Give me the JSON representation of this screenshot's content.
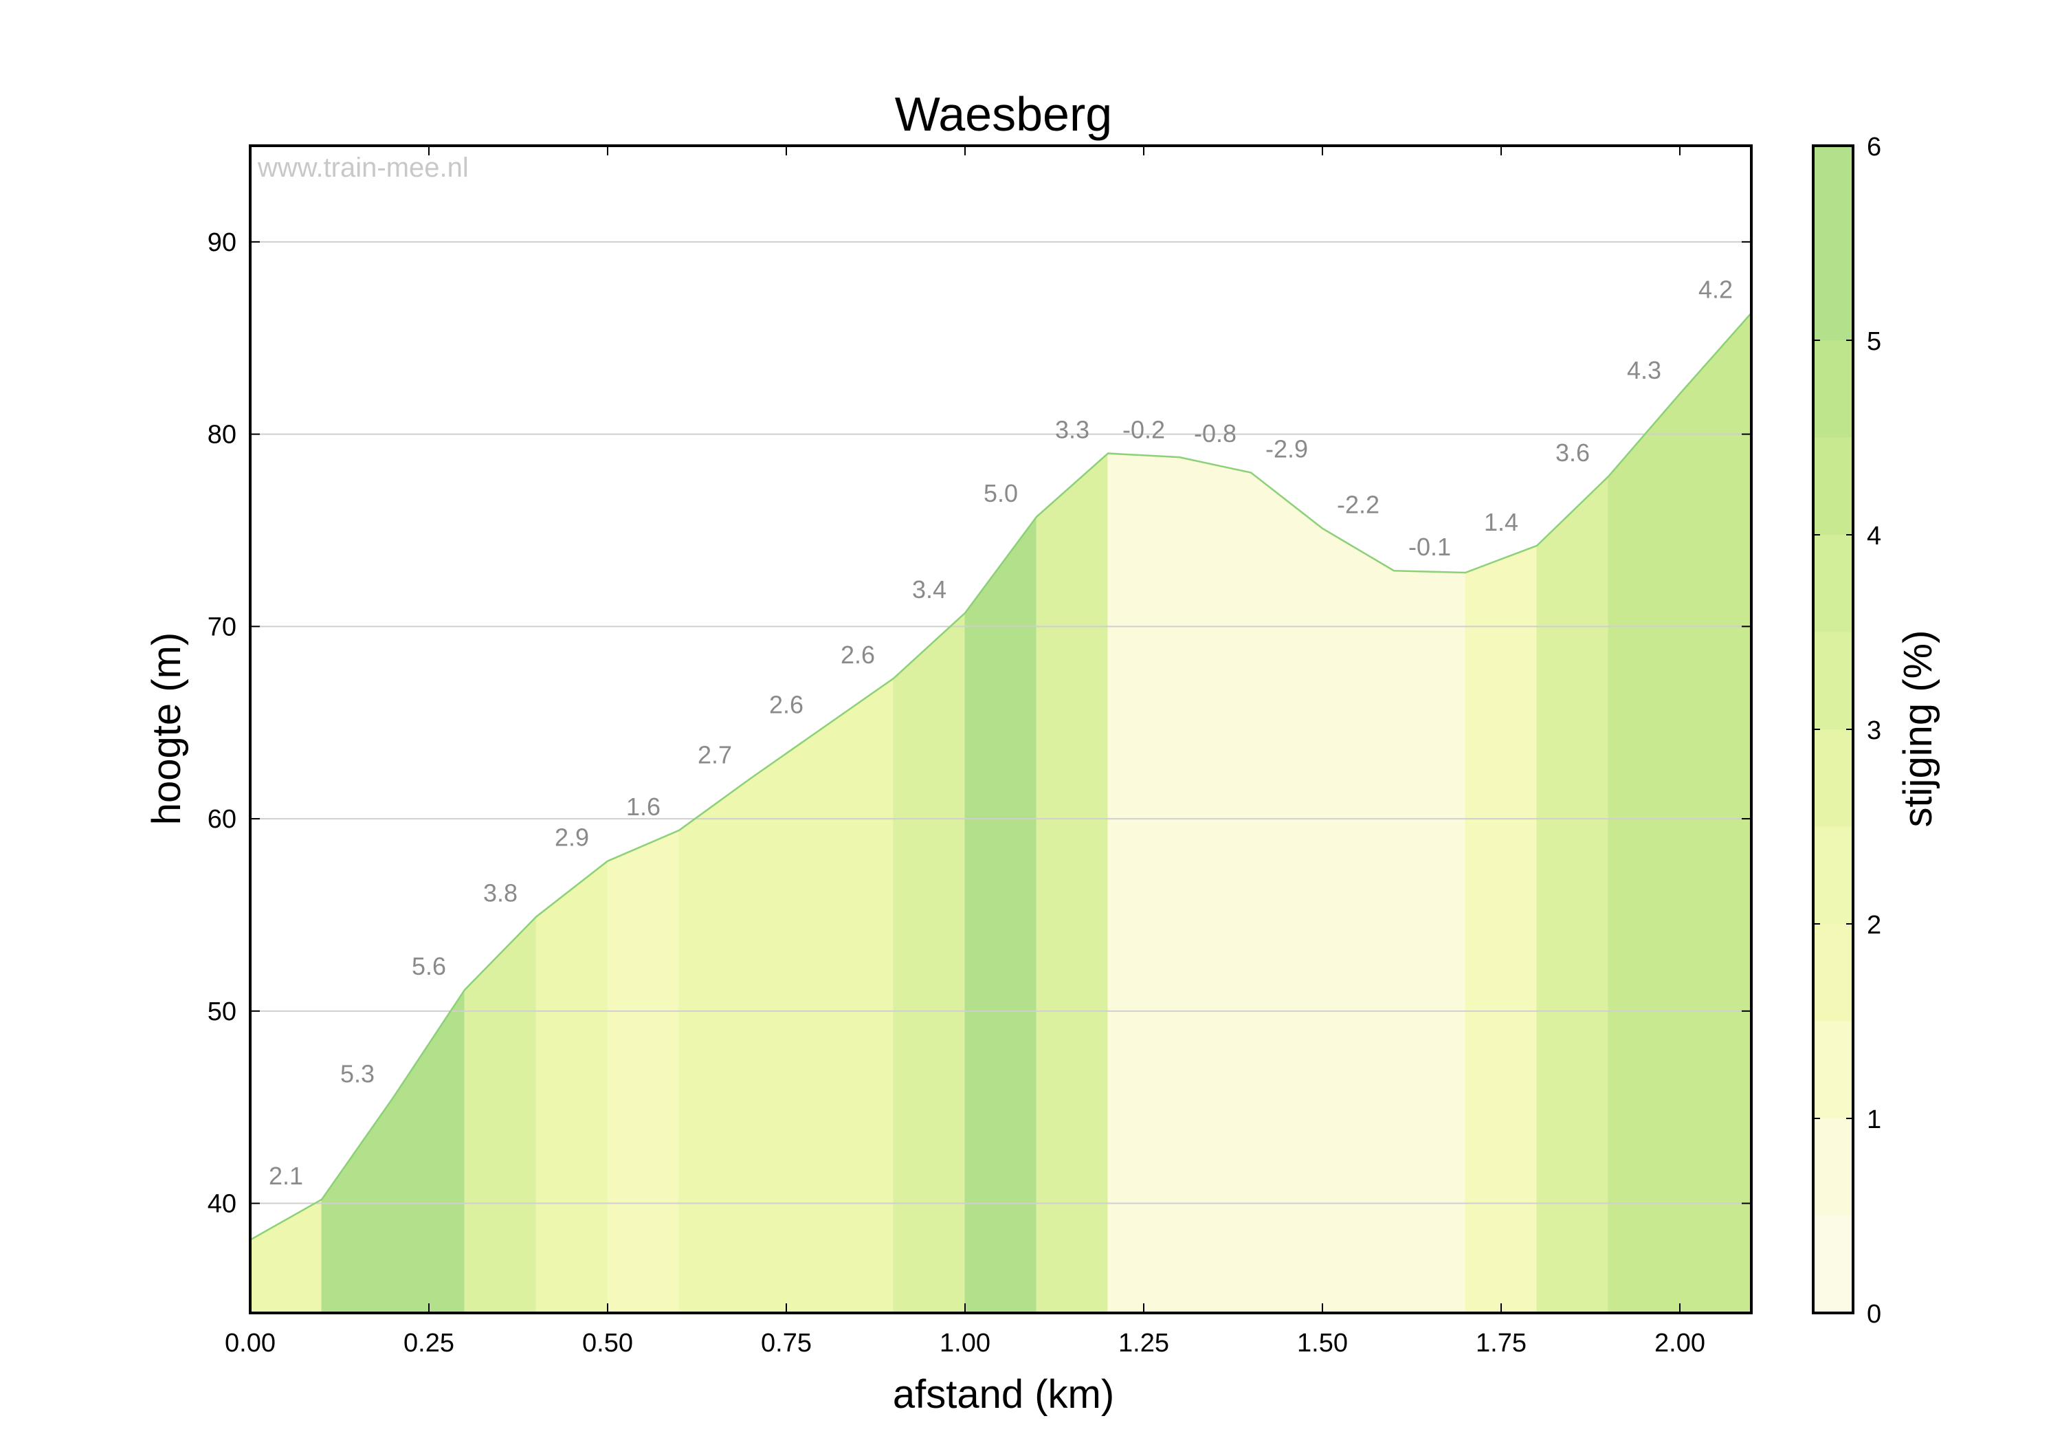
{
  "watermark": "www.train-mee.nl",
  "colors": {
    "band_0_1": "#fbfbdc",
    "band_1_2": "#f5f9bc",
    "band_2_3": "#edf7ad",
    "band_3_4": "#dcf1a0",
    "band_4_5": "#c8e990",
    "band_5_6": "#b3e08a",
    "profile_line": "#8cd078",
    "gridline": "#cfcfcf"
  },
  "chart_data": {
    "type": "area",
    "title": "Waesberg",
    "xlabel": "afstand (km)",
    "ylabel": "hoogte (m)",
    "xlim": [
      0,
      2.1
    ],
    "ylim": [
      34.3,
      95
    ],
    "x_ticks": [
      0.0,
      0.25,
      0.5,
      0.75,
      1.0,
      1.25,
      1.5,
      1.75,
      2.0
    ],
    "x_tick_labels": [
      "0.00",
      "0.25",
      "0.50",
      "0.75",
      "1.00",
      "1.25",
      "1.50",
      "1.75",
      "2.00"
    ],
    "y_ticks": [
      40,
      50,
      60,
      70,
      80,
      90
    ],
    "y_tick_labels": [
      "40",
      "50",
      "60",
      "70",
      "80",
      "90"
    ],
    "grid": "horizontal",
    "profile": {
      "x": [
        0.0,
        0.1,
        0.2,
        0.3,
        0.4,
        0.5,
        0.6,
        0.7,
        0.8,
        0.9,
        1.0,
        1.1,
        1.2,
        1.3,
        1.4,
        1.5,
        1.6,
        1.7,
        1.8,
        1.9,
        2.0,
        2.1
      ],
      "y": [
        38.1,
        40.2,
        45.5,
        51.1,
        54.9,
        57.8,
        59.4,
        62.1,
        64.7,
        67.3,
        70.7,
        75.7,
        79.0,
        78.8,
        78.0,
        75.1,
        72.9,
        72.8,
        74.2,
        77.8,
        82.1,
        86.3
      ]
    },
    "segments": [
      {
        "x0": 0.0,
        "x1": 0.1,
        "grade": 2.1,
        "label": "2.1"
      },
      {
        "x0": 0.1,
        "x1": 0.2,
        "grade": 5.3,
        "label": "5.3"
      },
      {
        "x0": 0.2,
        "x1": 0.3,
        "grade": 5.6,
        "label": "5.6"
      },
      {
        "x0": 0.3,
        "x1": 0.4,
        "grade": 3.8,
        "label": "3.8"
      },
      {
        "x0": 0.4,
        "x1": 0.5,
        "grade": 2.9,
        "label": "2.9"
      },
      {
        "x0": 0.5,
        "x1": 0.6,
        "grade": 1.6,
        "label": "1.6"
      },
      {
        "x0": 0.6,
        "x1": 0.7,
        "grade": 2.7,
        "label": "2.7"
      },
      {
        "x0": 0.7,
        "x1": 0.8,
        "grade": 2.6,
        "label": "2.6"
      },
      {
        "x0": 0.8,
        "x1": 0.9,
        "grade": 2.6,
        "label": "2.6"
      },
      {
        "x0": 0.9,
        "x1": 1.0,
        "grade": 3.4,
        "label": "3.4"
      },
      {
        "x0": 1.0,
        "x1": 1.1,
        "grade": 5.0,
        "label": "5.0"
      },
      {
        "x0": 1.1,
        "x1": 1.2,
        "grade": 3.3,
        "label": "3.3"
      },
      {
        "x0": 1.2,
        "x1": 1.3,
        "grade": -0.2,
        "label": "-0.2"
      },
      {
        "x0": 1.3,
        "x1": 1.4,
        "grade": -0.8,
        "label": "-0.8"
      },
      {
        "x0": 1.4,
        "x1": 1.5,
        "grade": -2.9,
        "label": "-2.9"
      },
      {
        "x0": 1.5,
        "x1": 1.6,
        "grade": -2.2,
        "label": "-2.2"
      },
      {
        "x0": 1.6,
        "x1": 1.7,
        "grade": -0.1,
        "label": "-0.1"
      },
      {
        "x0": 1.7,
        "x1": 1.8,
        "grade": 1.4,
        "label": "1.4"
      },
      {
        "x0": 1.8,
        "x1": 1.9,
        "grade": 3.6,
        "label": "3.6"
      },
      {
        "x0": 1.9,
        "x1": 2.0,
        "grade": 4.3,
        "label": "4.3"
      },
      {
        "x0": 2.0,
        "x1": 2.1,
        "grade": 4.2,
        "label": "4.2"
      }
    ],
    "colorbar": {
      "label": "stijging (%)",
      "range": [
        0,
        6
      ],
      "ticks": [
        0,
        1,
        2,
        3,
        4,
        5,
        6
      ],
      "tick_labels": [
        "0",
        "1",
        "2",
        "3",
        "4",
        "5",
        "6"
      ]
    }
  }
}
